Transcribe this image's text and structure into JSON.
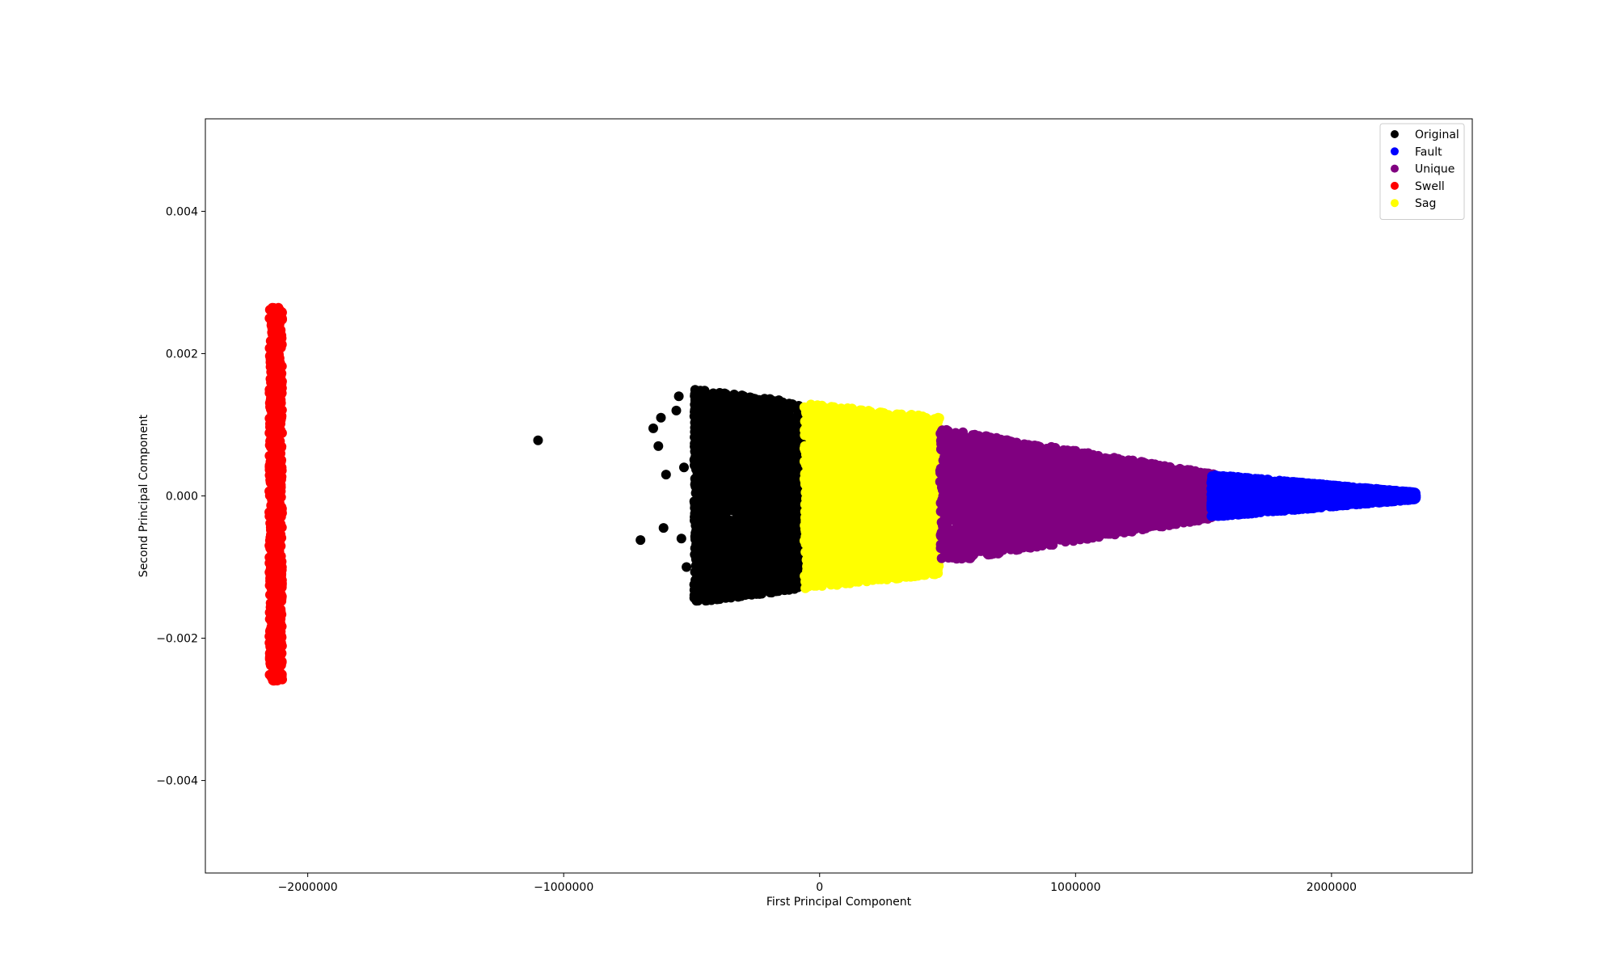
{
  "chart_data": {
    "type": "scatter",
    "title": "",
    "xlabel": "First Principal Component",
    "ylabel": "Second Principal Component",
    "xlim": [
      -2400000,
      2550000
    ],
    "ylim": [
      -0.0053,
      0.0053
    ],
    "xticks": [
      -2000000,
      -1000000,
      0,
      1000000,
      2000000
    ],
    "xtick_labels": [
      "−2000000",
      "−1000000",
      "0",
      "1000000",
      "2000000"
    ],
    "yticks": [
      -0.004,
      -0.002,
      0.0,
      0.002,
      0.004
    ],
    "ytick_labels": [
      "−0.004",
      "−0.002",
      "0.000",
      "0.002",
      "0.004"
    ],
    "grid": false,
    "legend_position": "top-right",
    "series": [
      {
        "name": "Original",
        "color": "#000000",
        "cluster": {
          "x_range": [
            -490000,
            -60000
          ],
          "y_half_width_at_start": 0.0015,
          "y_half_width_at_end": 0.0013
        },
        "points": [
          {
            "x": -1100000,
            "y": 0.00078
          },
          {
            "x": -700000,
            "y": -0.00062
          },
          {
            "x": -650000,
            "y": 0.00095
          },
          {
            "x": -620000,
            "y": 0.0011
          },
          {
            "x": -600000,
            "y": 0.0003
          },
          {
            "x": -630000,
            "y": 0.0007
          },
          {
            "x": -610000,
            "y": -0.00045
          },
          {
            "x": -560000,
            "y": 0.0012
          },
          {
            "x": -550000,
            "y": 0.0014
          },
          {
            "x": -540000,
            "y": -0.0006
          },
          {
            "x": -530000,
            "y": 0.0004
          },
          {
            "x": -520000,
            "y": -0.001
          }
        ]
      },
      {
        "name": "Fault",
        "color": "#0000ff",
        "cluster": {
          "x_range": [
            1530000,
            2330000
          ],
          "y_half_width_at_start": 0.0003,
          "y_half_width_at_end": 5e-05
        },
        "points": []
      },
      {
        "name": "Unique",
        "color": "#800080",
        "cluster": {
          "x_range": [
            470000,
            1560000
          ],
          "y_half_width_at_start": 0.00095,
          "y_half_width_at_end": 0.0003
        },
        "points": []
      },
      {
        "name": "Swell",
        "color": "#ff0000",
        "cluster": {
          "x_range": [
            -2150000,
            -2100000
          ],
          "y_range": [
            -0.0026,
            0.00265
          ]
        },
        "points": []
      },
      {
        "name": "Sag",
        "color": "#ffff00",
        "cluster": {
          "x_range": [
            -60000,
            470000
          ],
          "y_half_width_at_start": 0.0013,
          "y_half_width_at_end": 0.0011
        },
        "points": []
      }
    ]
  }
}
